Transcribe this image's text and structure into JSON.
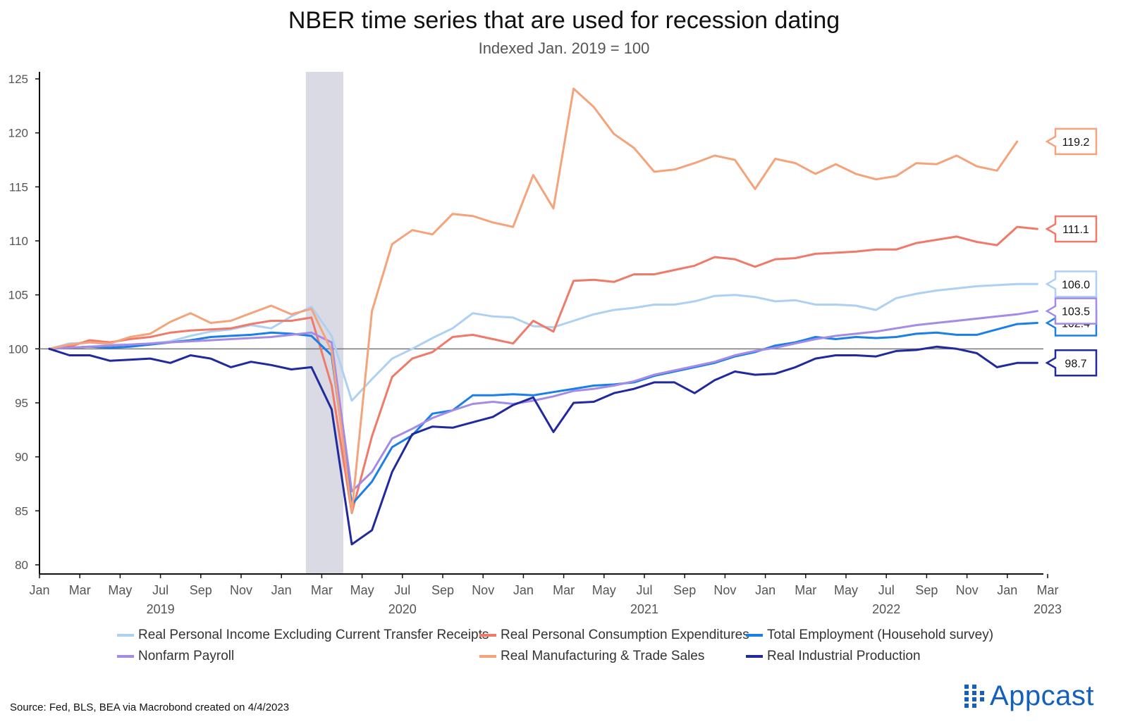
{
  "brand": {
    "name": "Appcast",
    "color": "#1560bd"
  },
  "source": "Source: Fed, BLS, BEA via Macrobond created on 4/4/2023",
  "chart_data": {
    "type": "line",
    "title": "NBER time series that are used for recession dating",
    "subtitle": "Indexed Jan. 2019 = 100",
    "xlabel": "",
    "ylabel": "",
    "ylim": [
      80,
      125
    ],
    "yticks": [
      80,
      85,
      90,
      95,
      100,
      105,
      110,
      115,
      120,
      125
    ],
    "reference_line": 100,
    "grid": false,
    "recession_shading": {
      "start": "2020-02",
      "end": "2020-04",
      "color": "#d9dae3"
    },
    "x_month_ticks": [
      {
        "date": "2019-01",
        "label": "Jan"
      },
      {
        "date": "2019-03",
        "label": "Mar"
      },
      {
        "date": "2019-05",
        "label": "May"
      },
      {
        "date": "2019-07",
        "label": "Jul"
      },
      {
        "date": "2019-09",
        "label": "Sep"
      },
      {
        "date": "2019-11",
        "label": "Nov"
      },
      {
        "date": "2020-01",
        "label": "Jan"
      },
      {
        "date": "2020-03",
        "label": "Mar"
      },
      {
        "date": "2020-05",
        "label": "May"
      },
      {
        "date": "2020-07",
        "label": "Jul"
      },
      {
        "date": "2020-09",
        "label": "Sep"
      },
      {
        "date": "2020-11",
        "label": "Nov"
      },
      {
        "date": "2021-01",
        "label": "Jan"
      },
      {
        "date": "2021-03",
        "label": "Mar"
      },
      {
        "date": "2021-05",
        "label": "May"
      },
      {
        "date": "2021-07",
        "label": "Jul"
      },
      {
        "date": "2021-09",
        "label": "Sep"
      },
      {
        "date": "2021-11",
        "label": "Nov"
      },
      {
        "date": "2022-01",
        "label": "Jan"
      },
      {
        "date": "2022-03",
        "label": "Mar"
      },
      {
        "date": "2022-05",
        "label": "May"
      },
      {
        "date": "2022-07",
        "label": "Jul"
      },
      {
        "date": "2022-09",
        "label": "Sep"
      },
      {
        "date": "2022-11",
        "label": "Nov"
      },
      {
        "date": "2023-01",
        "label": "Jan"
      },
      {
        "date": "2023-03",
        "label": "Mar"
      }
    ],
    "x_year_labels": [
      {
        "date": "2019-07",
        "label": "2019"
      },
      {
        "date": "2020-07",
        "label": "2020"
      },
      {
        "date": "2021-07",
        "label": "2021"
      },
      {
        "date": "2022-07",
        "label": "2022"
      },
      {
        "date": "2023-03",
        "label": "2023"
      }
    ],
    "x": [
      "2019-01",
      "2019-02",
      "2019-03",
      "2019-04",
      "2019-05",
      "2019-06",
      "2019-07",
      "2019-08",
      "2019-09",
      "2019-10",
      "2019-11",
      "2019-12",
      "2020-01",
      "2020-02",
      "2020-03",
      "2020-04",
      "2020-05",
      "2020-06",
      "2020-07",
      "2020-08",
      "2020-09",
      "2020-10",
      "2020-11",
      "2020-12",
      "2021-01",
      "2021-02",
      "2021-03",
      "2021-04",
      "2021-05",
      "2021-06",
      "2021-07",
      "2021-08",
      "2021-09",
      "2021-10",
      "2021-11",
      "2021-12",
      "2022-01",
      "2022-02",
      "2022-03",
      "2022-04",
      "2022-05",
      "2022-06",
      "2022-07",
      "2022-08",
      "2022-09",
      "2022-10",
      "2022-11",
      "2022-12",
      "2023-01",
      "2023-02"
    ],
    "series": [
      {
        "name": "Real Personal Income Excluding Current Transfer Receipts",
        "color": "#aed0f2",
        "end_label": "106.0",
        "values": [
          100,
          100.5,
          100.6,
          100.4,
          100.4,
          100.5,
          100.7,
          101.2,
          101.6,
          101.8,
          102.2,
          101.9,
          103.0,
          103.9,
          101.2,
          95.2,
          97.2,
          99.1,
          100.0,
          101.0,
          101.9,
          103.3,
          103.0,
          102.9,
          102.1,
          102.0,
          102.6,
          103.2,
          103.6,
          103.8,
          104.1,
          104.1,
          104.4,
          104.9,
          105.0,
          104.8,
          104.4,
          104.5,
          104.1,
          104.1,
          104.0,
          103.6,
          104.7,
          105.1,
          105.4,
          105.6,
          105.8,
          105.9,
          106.0,
          106.0
        ]
      },
      {
        "name": "Real Personal Consumption Expenditures",
        "color": "#f07a6a",
        "end_label": "111.1",
        "values": [
          100,
          100.2,
          100.8,
          100.6,
          100.9,
          101.1,
          101.5,
          101.7,
          101.8,
          101.9,
          102.3,
          102.6,
          102.6,
          102.9,
          96.6,
          84.8,
          91.9,
          97.4,
          99.1,
          99.7,
          101.1,
          101.3,
          100.9,
          100.5,
          102.6,
          101.6,
          106.3,
          106.4,
          106.2,
          106.9,
          106.9,
          107.3,
          107.7,
          108.5,
          108.3,
          107.6,
          108.3,
          108.4,
          108.8,
          108.9,
          109.0,
          109.2,
          109.2,
          109.8,
          110.1,
          110.4,
          109.9,
          109.6,
          111.3,
          111.1
        ]
      },
      {
        "name": "Total Employment (Household survey)",
        "color": "#1b7fe8",
        "end_label": "102.4",
        "values": [
          100,
          100.1,
          100.2,
          100.1,
          100.2,
          100.4,
          100.6,
          100.8,
          101.1,
          101.2,
          101.3,
          101.5,
          101.4,
          101.2,
          99.4,
          85.6,
          87.7,
          90.9,
          92.0,
          94.0,
          94.3,
          95.7,
          95.7,
          95.8,
          95.7,
          96.0,
          96.3,
          96.6,
          96.7,
          96.9,
          97.5,
          97.9,
          98.3,
          98.7,
          99.3,
          99.7,
          100.3,
          100.6,
          101.1,
          100.9,
          101.1,
          101.0,
          101.1,
          101.4,
          101.5,
          101.3,
          101.3,
          101.8,
          102.3,
          102.4
        ]
      },
      {
        "name": "Nonfarm Payroll",
        "color": "#a48be6",
        "end_label": "103.5",
        "values": [
          100,
          100.1,
          100.2,
          100.3,
          100.4,
          100.5,
          100.6,
          100.7,
          100.8,
          100.9,
          101.0,
          101.1,
          101.3,
          101.5,
          100.6,
          86.8,
          88.6,
          91.7,
          92.6,
          93.6,
          94.3,
          94.9,
          95.1,
          94.9,
          95.2,
          95.6,
          96.1,
          96.3,
          96.6,
          97.0,
          97.6,
          98.0,
          98.4,
          98.8,
          99.4,
          99.8,
          100.1,
          100.5,
          100.9,
          101.2,
          101.4,
          101.6,
          101.9,
          102.2,
          102.4,
          102.6,
          102.8,
          103.0,
          103.2,
          103.5
        ]
      },
      {
        "name": "Real Manufacturing & Trade Sales",
        "color": "#f4a37a",
        "end_label": "119.2",
        "values": [
          100,
          100.4,
          100.6,
          100.5,
          101.1,
          101.4,
          102.5,
          103.3,
          102.4,
          102.6,
          103.3,
          104.0,
          103.2,
          103.7,
          99.8,
          84.9,
          103.5,
          109.7,
          111.0,
          110.6,
          112.5,
          112.3,
          111.7,
          111.3,
          116.1,
          113.0,
          124.1,
          122.4,
          119.9,
          118.6,
          116.4,
          116.6,
          117.2,
          117.9,
          117.5,
          114.8,
          117.6,
          117.2,
          116.2,
          117.1,
          116.2,
          115.7,
          116.0,
          117.2,
          117.1,
          117.9,
          116.9,
          116.5,
          119.2,
          null
        ]
      },
      {
        "name": "Real Industrial Production",
        "color": "#202a9e",
        "end_label": "98.7",
        "values": [
          100,
          99.4,
          99.4,
          98.9,
          99.0,
          99.1,
          98.7,
          99.4,
          99.1,
          98.3,
          98.8,
          98.5,
          98.1,
          98.3,
          94.4,
          81.9,
          83.2,
          88.6,
          92.1,
          92.8,
          92.7,
          93.2,
          93.7,
          94.8,
          95.5,
          92.3,
          95.0,
          95.1,
          95.9,
          96.3,
          96.9,
          96.9,
          95.9,
          97.1,
          97.9,
          97.6,
          97.7,
          98.3,
          99.1,
          99.4,
          99.4,
          99.3,
          99.8,
          99.9,
          100.2,
          100.0,
          99.6,
          98.3,
          98.7,
          98.7
        ]
      }
    ]
  }
}
